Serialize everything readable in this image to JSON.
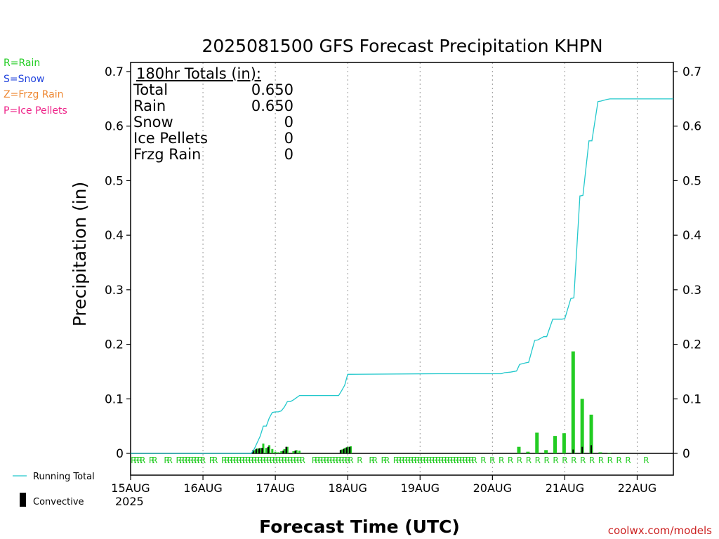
{
  "title": "2025081500 GFS Forecast Precipitation KHPN",
  "legend_ptypes": [
    {
      "label": "R=Rain",
      "color": "#22cc22"
    },
    {
      "label": "S=Snow",
      "color": "#2244dd"
    },
    {
      "label": "Z=Frzg Rain",
      "color": "#ee8833"
    },
    {
      "label": "P=Ice Pellets",
      "color": "#ee2288"
    }
  ],
  "legend_series": {
    "running_total": "Running Total",
    "convective": "Convective"
  },
  "totals": {
    "header": "180hr Totals (in):",
    "rows": [
      {
        "label": "Total",
        "value": "0.650"
      },
      {
        "label": "Rain",
        "value": "0.650"
      },
      {
        "label": "Snow",
        "value": "0"
      },
      {
        "label": "Ice Pellets",
        "value": "0"
      },
      {
        "label": "Frzg Rain",
        "value": "0"
      }
    ]
  },
  "source": "coolwx.com/models",
  "chart_data": {
    "type": "bar",
    "title": "2025081500 GFS Forecast Precipitation KHPN",
    "xlabel": "Forecast Time (UTC)",
    "ylabel": "Precipitation (in)",
    "xlim_hours": [
      0,
      180
    ],
    "ylim": [
      0,
      0.72
    ],
    "y_ticks": [
      0,
      0.1,
      0.2,
      0.3,
      0.4,
      0.5,
      0.6,
      0.7
    ],
    "y_tick_labels": [
      "0",
      "0.1",
      "0.2",
      "0.3",
      "0.4",
      "0.5",
      "0.6",
      "0.7"
    ],
    "x_ticks_hours": [
      0,
      24,
      48,
      72,
      96,
      120,
      144,
      168
    ],
    "x_tick_labels": [
      "15AUG",
      "16AUG",
      "17AUG",
      "18AUG",
      "19AUG",
      "20AUG",
      "21AUG",
      "22AUG"
    ],
    "x_sub_label": "2025",
    "grid": "vertical-dotted",
    "series": [
      {
        "name": "Running Total",
        "type": "line",
        "color": "#22c8cc",
        "x_hours": [
          0,
          40,
          41,
          42,
          43,
          44,
          45,
          46,
          47,
          48,
          49,
          50,
          51,
          52,
          53,
          54,
          55,
          56,
          57,
          58,
          69,
          70,
          71,
          72,
          102,
          123,
          124,
          126,
          128,
          129,
          131,
          132,
          134,
          135,
          137,
          138,
          140,
          141,
          143,
          144,
          146,
          147,
          149,
          150,
          152,
          153,
          155,
          156,
          158,
          159,
          161,
          162,
          180
        ],
        "y": [
          0,
          0,
          0.008,
          0.02,
          0.032,
          0.05,
          0.05,
          0.065,
          0.075,
          0.076,
          0.076,
          0.078,
          0.085,
          0.095,
          0.095,
          0.098,
          0.102,
          0.106,
          0.106,
          0.106,
          0.106,
          0.115,
          0.125,
          0.145,
          0.146,
          0.146,
          0.148,
          0.149,
          0.151,
          0.163,
          0.166,
          0.167,
          0.207,
          0.208,
          0.214,
          0.214,
          0.246,
          0.246,
          0.246,
          0.247,
          0.284,
          0.285,
          0.472,
          0.473,
          0.573,
          0.573,
          0.645,
          0.646,
          0.649,
          0.65,
          0.65,
          0.65,
          0.65
        ]
      },
      {
        "name": "Rain (interval)",
        "type": "bar",
        "color": "#22cc22",
        "x_hours": [
          41,
          42,
          43,
          44,
          45,
          46,
          47,
          48,
          49,
          50,
          51,
          52,
          54,
          55,
          56,
          70,
          71,
          72,
          73,
          129,
          132,
          135,
          138,
          141,
          144,
          147,
          150,
          153,
          156,
          159
        ],
        "values": [
          0.006,
          0.009,
          0.01,
          0.018,
          0.01,
          0.015,
          0.008,
          0.003,
          0.002,
          0.004,
          0.008,
          0.012,
          0.004,
          0.006,
          0.005,
          0.007,
          0.01,
          0.012,
          0.013,
          0.012,
          0.003,
          0.038,
          0.006,
          0.032,
          0.037,
          0.187,
          0.1,
          0.071,
          0.002,
          0.001
        ]
      },
      {
        "name": "Convective",
        "type": "bar",
        "color": "#000000",
        "x_hours": [
          41,
          42,
          43,
          44,
          46,
          51,
          52,
          55,
          70,
          71,
          72,
          73,
          147,
          150,
          153
        ],
        "values": [
          0.006,
          0.008,
          0.009,
          0.01,
          0.012,
          0.005,
          0.012,
          0.005,
          0.006,
          0.008,
          0.011,
          0.012,
          0.007,
          0.012,
          0.015
        ]
      }
    ],
    "ptype_markers": {
      "symbol": "R",
      "color": "#22cc22",
      "x_hours": [
        1,
        2,
        3,
        4,
        7,
        8,
        12,
        13,
        16,
        17,
        18,
        19,
        20,
        21,
        22,
        23,
        24,
        27,
        28,
        31,
        32,
        33,
        34,
        35,
        36,
        37,
        38,
        39,
        40,
        41,
        42,
        43,
        44,
        45,
        46,
        47,
        48,
        49,
        50,
        51,
        52,
        53,
        54,
        55,
        56,
        57,
        61,
        62,
        63,
        64,
        65,
        66,
        67,
        68,
        69,
        70,
        71,
        72,
        73,
        76,
        80,
        81,
        84,
        85,
        88,
        89,
        90,
        91,
        92,
        93,
        94,
        95,
        96,
        97,
        98,
        99,
        100,
        101,
        102,
        103,
        104,
        105,
        106,
        107,
        108,
        109,
        110,
        111,
        112,
        113,
        114,
        117,
        120,
        123,
        126,
        129,
        132,
        135,
        138,
        141,
        144,
        147,
        150,
        153,
        156,
        159,
        162,
        165,
        171
      ]
    }
  }
}
